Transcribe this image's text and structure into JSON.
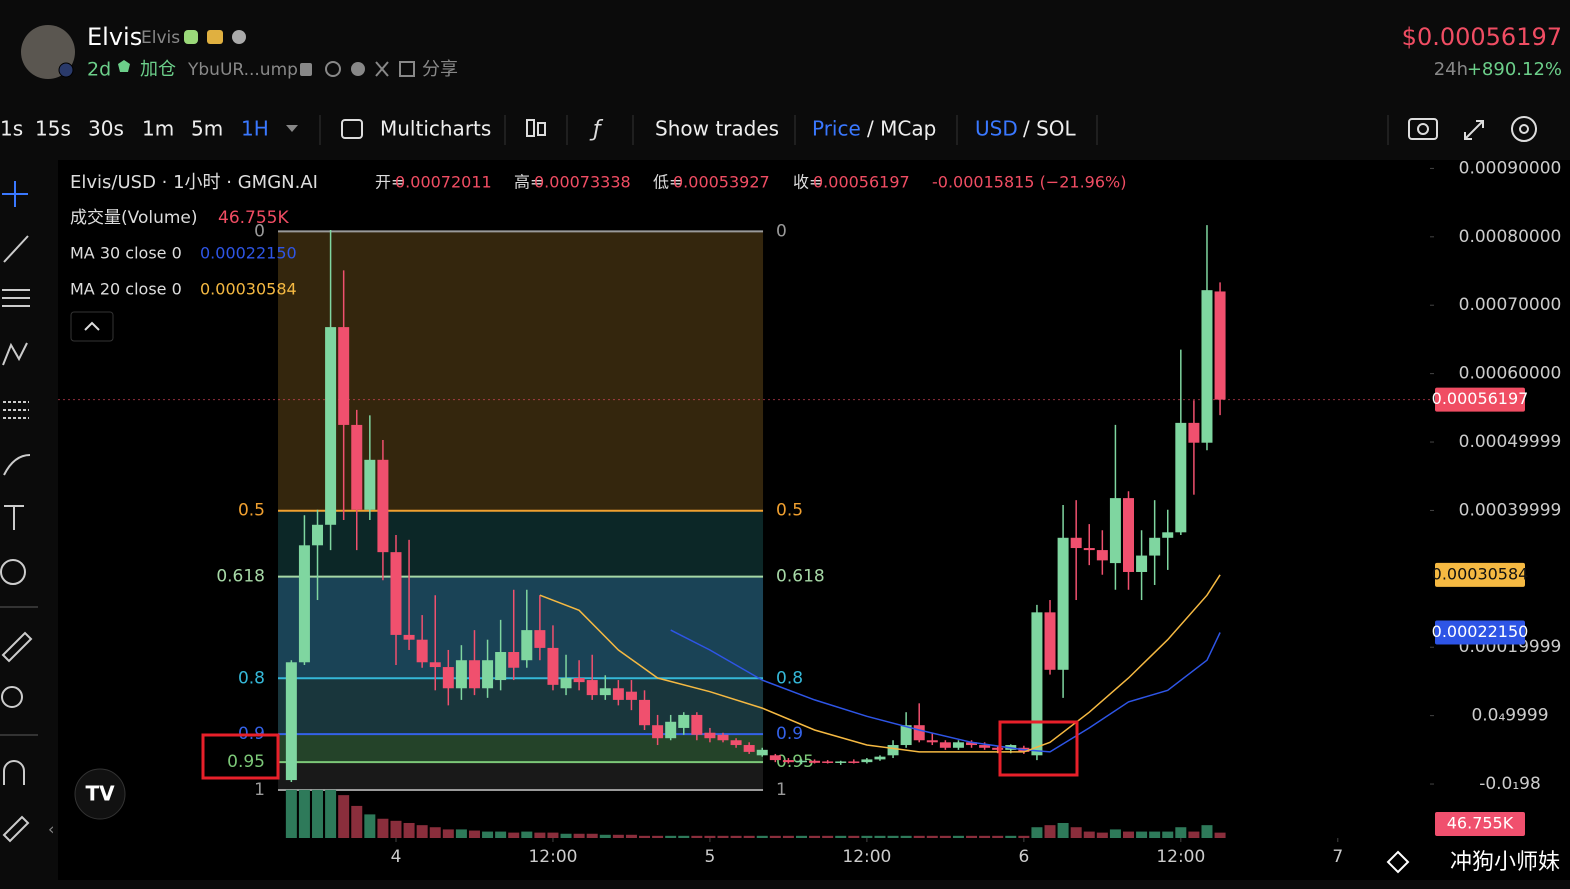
{
  "header": {
    "name": "Elvis",
    "ticker": "Elvis",
    "age": "2d",
    "add": "加仓",
    "address": "YbuUR...ump",
    "share": "分享",
    "price": "$0.00056197",
    "change_period": "24h",
    "change": "+890.12%"
  },
  "toolbar": {
    "intervals": [
      "1s",
      "15s",
      "30s",
      "1m",
      "5m",
      "1H"
    ],
    "multicharts": "Multicharts",
    "show_trades": "Show trades",
    "price": "Price",
    "mcap": "/ MCap",
    "usd": "USD",
    "sol": "/ SOL"
  },
  "chart_data": {
    "type": "candlestick",
    "title": "Elvis/USD · 1小时 · GMGN.AI",
    "ohlc_summary": [
      {
        "label": "开=",
        "value": "0.00072011"
      },
      {
        "label": "高=",
        "value": "0.00073338"
      },
      {
        "label": "低=",
        "value": "0.00053927"
      },
      {
        "label": "收=",
        "value": "0.00056197"
      }
    ],
    "change_summary": "-0.00015815 (−21.96%)",
    "volume_label": "成交量(Volume)",
    "volume_value": "46.755K",
    "up_color": "#7fd6a0",
    "down_color": "#f0506e",
    "x": [
      -8,
      -7,
      -6,
      -5,
      -4,
      -3,
      -2,
      -1,
      0,
      1,
      2,
      3,
      4,
      5,
      6,
      7,
      8,
      9,
      10,
      11,
      12,
      13,
      14,
      15,
      16,
      17,
      18,
      19,
      20,
      21,
      22,
      23,
      24,
      25,
      26,
      27,
      28,
      29,
      30,
      31,
      32,
      33,
      34,
      35,
      36,
      37,
      38,
      39,
      40,
      41,
      42,
      43,
      44,
      45,
      46,
      47,
      48,
      49,
      50,
      51,
      52,
      53,
      54,
      55,
      56,
      57,
      58,
      59,
      60,
      61,
      62,
      63
    ],
    "open": [
      5.8e-06,
      0.000178,
      0.000349,
      0.000379,
      0.000668,
      0.000525,
      0.000401,
      0.000474,
      0.000339,
      0.000218,
      0.000211,
      0.000178,
      0.000171,
      0.00014,
      0.000181,
      0.00014,
      0.000152,
      0.000193,
      0.000181,
      0.000225,
      0.000199,
      0.00014,
      0.000155,
      0.000152,
      0.00013,
      0.00014,
      0.000135,
      0.000123,
      8.6e-05,
      6.7e-05,
      8.2e-05,
      0.000101,
      7.5e-05,
      7.2e-05,
      6.4e-05,
      5.7e-05,
      4.2e-05,
      4.2e-05,
      3.5e-05,
      3.2e-05,
      3.4e-05,
      3.3e-05,
      3.1e-05,
      3.3e-05,
      3.2e-05,
      3.6e-05,
      4.2e-05,
      5.7e-05,
      8.6e-05,
      6.4e-05,
      6.1e-05,
      5.3e-05,
      6.1e-05,
      5.7e-05,
      5.3e-05,
      5e-05,
      5.3e-05,
      4.2e-05,
      0.000251,
      0.000167,
      0.00036,
      0.000345,
      0.000342,
      0.000323,
      0.000418,
      0.00031,
      0.000334,
      0.00036,
      0.000368,
      0.000528,
      0.000499,
      0.00072011
    ],
    "high": [
      0.000181,
      0.000393,
      0.000401,
      0.00081,
      0.000751,
      0.000547,
      0.000539,
      0.000503,
      0.000364,
      0.000357,
      0.000247,
      0.000276,
      0.000196,
      0.000203,
      0.000225,
      0.000211,
      0.00024,
      0.000284,
      0.000284,
      0.000276,
      0.000232,
      0.000189,
      0.000181,
      0.000189,
      0.000159,
      0.000152,
      0.000152,
      0.000137,
      0.000101,
      0.000101,
      0.000105,
      0.000105,
      8.2e-05,
      7.5e-05,
      6.7e-05,
      6.1e-05,
      5.3e-05,
      4.4e-05,
      3.8e-05,
      3.6e-05,
      3.6e-05,
      3.5e-05,
      3.4e-05,
      3.6e-05,
      3.8e-05,
      4.2e-05,
      6.4e-05,
      0.000105,
      0.000118,
      7.5e-05,
      6.4e-05,
      6.4e-05,
      6.4e-05,
      6.1e-05,
      5.5e-05,
      5.8e-05,
      5.6e-05,
      0.000262,
      0.000269,
      0.000408,
      0.000415,
      0.00038,
      0.000371,
      0.000525,
      0.000428,
      0.000371,
      0.000415,
      0.000401,
      0.000635,
      0.000561,
      0.000817,
      0.00073338
    ],
    "low": [
      3e-06,
      0.000174,
      0.000269,
      0.000342,
      0.000386,
      0.000342,
      0.000386,
      0.000298,
      0.000174,
      0.000196,
      0.00017,
      0.000137,
      0.000115,
      0.000123,
      0.00013,
      0.000126,
      0.000137,
      0.000152,
      0.00017,
      0.000181,
      0.000137,
      0.00013,
      0.000137,
      0.000123,
      0.000123,
      0.000115,
      0.000108,
      7.9e-05,
      5.7e-05,
      6.4e-05,
      7.2e-05,
      6.4e-05,
      6.1e-05,
      6.1e-05,
      5.3e-05,
      4.4e-05,
      4e-05,
      3.2e-05,
      3e-05,
      2.9e-05,
      3e-05,
      3e-05,
      2.8e-05,
      3e-05,
      3e-05,
      3.4e-05,
      3.8e-05,
      5.3e-05,
      6.1e-05,
      5.7e-05,
      5e-05,
      5e-05,
      5.3e-05,
      5e-05,
      4.5e-05,
      4.5e-05,
      4.4e-05,
      3.5e-05,
      0.00016,
      0.000126,
      0.000269,
      0.00032,
      0.000306,
      0.000284,
      0.000284,
      0.000269,
      0.000291,
      0.000313,
      0.000364,
      0.000423,
      0.000488,
      0.00053927
    ],
    "close": [
      0.000178,
      0.000349,
      0.000379,
      0.000668,
      0.000525,
      0.000401,
      0.000474,
      0.000339,
      0.000218,
      0.000211,
      0.000178,
      0.000171,
      0.00014,
      0.000181,
      0.00014,
      0.000181,
      0.000193,
      0.00017,
      0.000225,
      0.000199,
      0.000145,
      0.000155,
      0.000149,
      0.00013,
      0.00014,
      0.000123,
      0.000123,
      8.6e-05,
      6.7e-05,
      9.1e-05,
      0.000101,
      7.2e-05,
      6.7e-05,
      6.4e-05,
      5.7e-05,
      4.7e-05,
      5e-05,
      3.5e-05,
      3.2e-05,
      3.4e-05,
      3.1e-05,
      3.1e-05,
      3.3e-05,
      3.2e-05,
      3.6e-05,
      4e-05,
      5.7e-05,
      8.6e-05,
      6.4e-05,
      6.1e-05,
      5.3e-05,
      6.1e-05,
      5.7e-05,
      5.3e-05,
      5e-05,
      5.7e-05,
      4.7e-05,
      0.000251,
      0.000167,
      0.00036,
      0.000345,
      0.000342,
      0.000327,
      0.000418,
      0.00031,
      0.000334,
      0.00036,
      0.000368,
      0.000528,
      0.000499,
      0.000722,
      0.00056197
    ],
    "volume": [
      420000,
      420000,
      420000,
      420000,
      374000,
      280000,
      206000,
      168000,
      150000,
      131000,
      112000,
      94000,
      75000,
      75000,
      65000,
      56000,
      56000,
      47000,
      56000,
      47000,
      47000,
      37000,
      37000,
      37000,
      28000,
      28000,
      28000,
      19000,
      19000,
      19000,
      19000,
      19000,
      19000,
      19000,
      19000,
      19000,
      19000,
      19000,
      19000,
      19000,
      19000,
      19000,
      19000,
      19000,
      19000,
      19000,
      19000,
      19000,
      19000,
      19000,
      19000,
      19000,
      19000,
      19000,
      19000,
      19000,
      19000,
      94000,
      112000,
      131000,
      94000,
      56000,
      47000,
      75000,
      56000,
      56000,
      56000,
      56000,
      94000,
      56000,
      112000,
      46755
    ],
    "volume_lim": [
      0,
      480000
    ],
    "xlim": [
      -25.84,
      79.05
    ],
    "xticks": [
      {
        "value": 0,
        "label": "4"
      },
      {
        "value": 12,
        "label": "12:00"
      },
      {
        "value": 24,
        "label": "5"
      },
      {
        "value": 36,
        "label": "12:00"
      },
      {
        "value": 48,
        "label": "6"
      },
      {
        "value": 60,
        "label": "12:00"
      },
      {
        "value": 72,
        "label": "7"
      }
    ],
    "ylim": [
      -7.89e-05,
      0.0009123
    ],
    "yticks": [
      {
        "value": 0.0009,
        "label": "0.00090000"
      },
      {
        "value": 0.0008,
        "label": "0.00080000"
      },
      {
        "value": 0.0007,
        "label": "0.00070000"
      },
      {
        "value": 0.0006,
        "label": "0.00060000"
      },
      {
        "value": 0.00049999,
        "label": "0.00049999"
      },
      {
        "value": 0.00039999,
        "label": "0.00039999"
      },
      {
        "value": 0.00019999,
        "label": "0.00019999"
      },
      {
        "value": 9.999e-05,
        "label": "0.0₄9999"
      },
      {
        "value": -9.8e-09,
        "label": "-0.0₁98"
      }
    ],
    "series": [
      {
        "name": "MA 30 close 0",
        "color": "#2e55e6",
        "x": [
          21,
          24,
          28,
          32,
          36,
          40,
          44,
          48,
          50,
          53,
          56,
          59,
          62,
          63
        ],
        "values": [
          0.000225,
          0.000196,
          0.000152,
          0.000123,
          9.9e-05,
          7.9e-05,
          6.1e-05,
          5e-05,
          4.7e-05,
          8.2e-05,
          0.00012,
          0.000137,
          0.000181,
          0.0002215
        ],
        "value_label": "0.00022150"
      },
      {
        "name": "MA 20 close 0",
        "color": "#f5b942",
        "x": [
          11,
          14,
          17,
          20,
          24,
          28,
          32,
          36,
          40,
          44,
          48,
          50,
          53,
          56,
          59,
          62,
          63
        ],
        "values": [
          0.000276,
          0.000254,
          0.000196,
          0.000155,
          0.000135,
          0.000111,
          7.9e-05,
          5.7e-05,
          4.7e-05,
          4.7e-05,
          4.7e-05,
          6.1e-05,
          0.000105,
          0.000155,
          0.000211,
          0.000276,
          0.00030584
        ],
        "value_label": "0.00030584"
      }
    ],
    "last_price": {
      "value": 0.00056197,
      "label": "0.00056197",
      "color": "#f04d63"
    },
    "fib": {
      "levels": [
        0,
        0.5,
        0.618,
        0.8,
        0.9,
        0.95,
        1
      ],
      "high": 0.000808,
      "low": -8.8e-06,
      "x": [
        -9.02,
        28.06
      ],
      "colors": [
        "#9a9a9a",
        "#f0a030",
        "#a6d8a6",
        "#35b8d8",
        "#3462e8",
        "#7cc878",
        "#9a9a9a"
      ],
      "fills": [
        "#3a2a0e",
        "#0d2b2b",
        "#1d4a5f",
        "#1c3c42",
        "#284a2e",
        "#1c1c1c"
      ]
    }
  },
  "watermark": "冲狗小师妹"
}
